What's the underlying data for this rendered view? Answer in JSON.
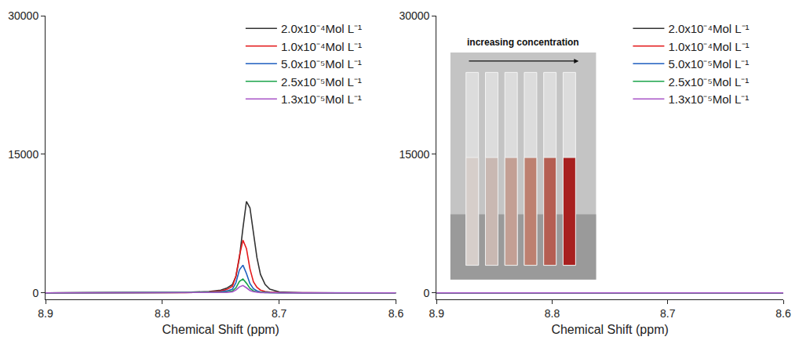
{
  "chart_data": [
    {
      "type": "line",
      "x_label": "Chemical Shift (ppm)",
      "x": [
        8.9,
        8.85,
        8.8,
        8.78,
        8.76,
        8.75,
        8.745,
        8.74,
        8.737,
        8.734,
        8.731,
        8.728,
        8.725,
        8.722,
        8.719,
        8.716,
        8.712,
        8.708,
        8.7,
        8.68,
        8.65,
        8.6
      ],
      "series": [
        {
          "name": "2.0x10⁻⁴Mol L⁻¹",
          "color": "#333333",
          "values": [
            0,
            0,
            0,
            50,
            150,
            300,
            500,
            900,
            1800,
            3800,
            7000,
            9900,
            9200,
            6500,
            3800,
            2000,
            900,
            400,
            100,
            0,
            0,
            0
          ]
        },
        {
          "name": "1.0x10⁻⁴Mol L⁻¹",
          "color": "#e41a1c",
          "values": [
            0,
            0,
            0,
            30,
            100,
            200,
            350,
            700,
            1800,
            4000,
            5700,
            4800,
            2600,
            1200,
            600,
            300,
            150,
            80,
            30,
            0,
            0,
            0
          ]
        },
        {
          "name": "5.0x10⁻⁵Mol L⁻¹",
          "color": "#1f5fbf",
          "values": [
            0,
            0,
            0,
            20,
            60,
            120,
            200,
            400,
            1100,
            2500,
            3000,
            2100,
            1000,
            450,
            220,
            110,
            60,
            30,
            10,
            0,
            0,
            0
          ]
        },
        {
          "name": "2.5x10⁻⁵Mol L⁻¹",
          "color": "#1aa34a",
          "values": [
            0,
            0,
            0,
            10,
            30,
            60,
            100,
            200,
            550,
            1250,
            1500,
            1050,
            500,
            220,
            110,
            50,
            30,
            15,
            5,
            0,
            0,
            0
          ]
        },
        {
          "name": "1.3x10⁻⁵Mol L⁻¹",
          "color": "#a855c8",
          "values": [
            0,
            0,
            0,
            5,
            15,
            30,
            50,
            100,
            300,
            650,
            800,
            550,
            260,
            120,
            60,
            30,
            15,
            8,
            3,
            0,
            0,
            0
          ]
        }
      ],
      "xlim": [
        8.9,
        8.6
      ],
      "xticks": [
        8.9,
        8.8,
        8.7,
        8.6
      ],
      "ylim": [
        -700,
        30000
      ],
      "yticks": [
        0,
        15000,
        30000
      ],
      "grid": false,
      "legend": "top right"
    },
    {
      "type": "line",
      "x_label": "Chemical Shift (ppm)",
      "x": [
        8.9,
        8.75,
        8.6
      ],
      "series": [
        {
          "name": "2.0x10⁻⁴Mol L⁻¹",
          "color": "#333333",
          "values": [
            0,
            0,
            0
          ]
        },
        {
          "name": "1.0x10⁻⁴Mol L⁻¹",
          "color": "#e41a1c",
          "values": [
            0,
            0,
            0
          ]
        },
        {
          "name": "5.0x10⁻⁵Mol L⁻¹",
          "color": "#1f5fbf",
          "values": [
            0,
            0,
            0
          ]
        },
        {
          "name": "2.5x10⁻⁵Mol L⁻¹",
          "color": "#1aa34a",
          "values": [
            0,
            0,
            0
          ]
        },
        {
          "name": "1.3x10⁻⁵Mol L⁻¹",
          "color": "#a855c8",
          "values": [
            0,
            0,
            0
          ]
        }
      ],
      "xlim": [
        8.9,
        8.6
      ],
      "xticks": [
        8.9,
        8.8,
        8.7,
        8.6
      ],
      "ylim": [
        -700,
        30000
      ],
      "yticks": [
        0,
        15000,
        30000
      ],
      "grid": false,
      "legend": "top right",
      "annotations": [
        "increasing concentration"
      ]
    }
  ]
}
